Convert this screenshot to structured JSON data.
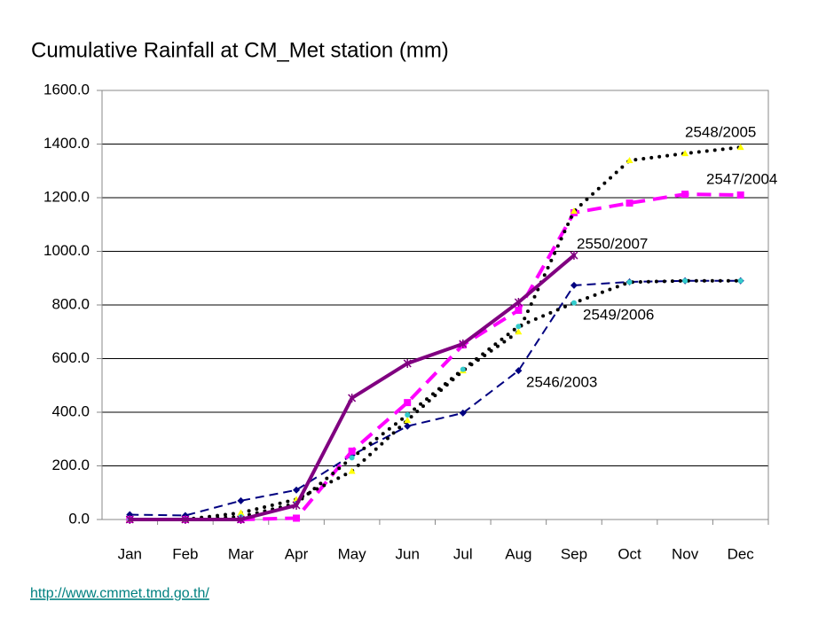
{
  "chart_data": {
    "type": "line",
    "title": "Cumulative Rainfall at CM_Met station (mm)",
    "categories": [
      "Jan",
      "Feb",
      "Mar",
      "Apr",
      "May",
      "Jun",
      "Jul",
      "Aug",
      "Sep",
      "Oct",
      "Nov",
      "Dec"
    ],
    "series": [
      {
        "name": "2546/2003",
        "color": "#000080",
        "marker_color": "#000080",
        "values": [
          18,
          15,
          70,
          110,
          240,
          348,
          397,
          555,
          873,
          886,
          890,
          890
        ]
      },
      {
        "name": "2547/2004",
        "color": "#ff00ff",
        "marker_color": "#ff00ff",
        "values": [
          0,
          0,
          0,
          5,
          255,
          436,
          651,
          780,
          1144,
          1180,
          1213,
          1210
        ]
      },
      {
        "name": "2548/2005",
        "color": "#000000",
        "marker_color": "#ffff00",
        "values": [
          0,
          0,
          25,
          75,
          180,
          370,
          555,
          700,
          1150,
          1339,
          1365,
          1388
        ]
      },
      {
        "name": "2549/2006",
        "color": "#000000",
        "marker_color": "#33cccc",
        "values": [
          0,
          0,
          10,
          60,
          230,
          390,
          560,
          720,
          808,
          885,
          890,
          890
        ]
      },
      {
        "name": "2550/2007",
        "color": "#800080",
        "marker_color": "#800080",
        "values": [
          0,
          0,
          0,
          53,
          453,
          582,
          655,
          810,
          985,
          null,
          null,
          null
        ]
      }
    ],
    "ylim": [
      0,
      1600
    ],
    "yticks": [
      {
        "value": 0,
        "label": "0.0"
      },
      {
        "value": 200,
        "label": "200.0"
      },
      {
        "value": 400,
        "label": "400.0"
      },
      {
        "value": 600,
        "label": "600.0"
      },
      {
        "value": 800,
        "label": "800.0"
      },
      {
        "value": 1000,
        "label": "1000.0"
      },
      {
        "value": 1200,
        "label": "1200.0"
      },
      {
        "value": 1400,
        "label": "1400.0"
      },
      {
        "value": 1600,
        "label": "1600.0"
      }
    ],
    "grid": true,
    "source_url": "http://www.cmmet.tmd.go.th/"
  }
}
